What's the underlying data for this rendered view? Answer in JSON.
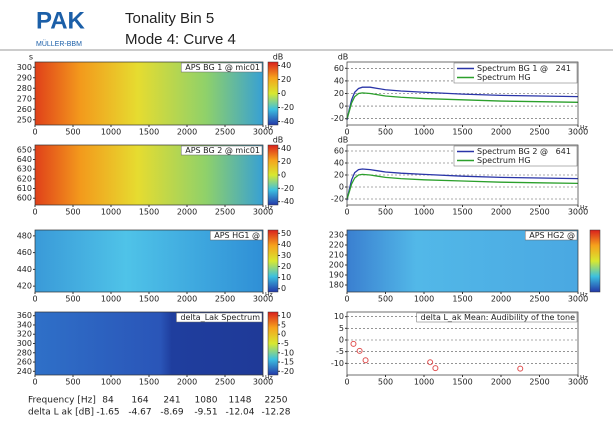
{
  "header": {
    "logo": "PAK",
    "company": "MÜLLER-BBM",
    "title": "Tonality Bin 5",
    "subtitle": "Mode 4: Curve 4"
  },
  "chart_data": [
    {
      "type": "heatmap",
      "title": "APS BG 1 @ mic01",
      "ylabel": "s",
      "x_unit": "Hz",
      "xlim": [
        0,
        3000
      ],
      "xticks": [
        0,
        500,
        1000,
        1500,
        2000,
        2500,
        3000
      ],
      "ylim": [
        245,
        305
      ],
      "yticks": [
        250,
        260,
        270,
        280,
        290,
        300
      ],
      "colorbar": {
        "label": "dB",
        "lim": [
          -45,
          45
        ],
        "ticks": [
          40,
          20,
          0,
          -20,
          -40
        ]
      }
    },
    {
      "type": "heatmap",
      "title": "APS BG 2 @ mic01",
      "x_unit": "Hz",
      "xlim": [
        0,
        3000
      ],
      "xticks": [
        0,
        500,
        1000,
        1500,
        2000,
        2500,
        3000
      ],
      "ylim": [
        593,
        655
      ],
      "yticks": [
        600,
        610,
        620,
        630,
        640,
        650
      ],
      "colorbar": {
        "label": "dB",
        "lim": [
          -45,
          45
        ],
        "ticks": [
          40,
          20,
          0,
          -20,
          -40
        ]
      }
    },
    {
      "type": "heatmap",
      "title": "APS HG1 @",
      "x_unit": "Hz",
      "xlim": [
        0,
        3000
      ],
      "xticks": [
        0,
        500,
        1000,
        1500,
        2000,
        2500,
        3000
      ],
      "ylim": [
        413,
        487
      ],
      "yticks": [
        420,
        440,
        460,
        480
      ],
      "colorbar": {
        "lim": [
          -3,
          53
        ],
        "ticks": [
          50,
          40,
          30,
          20,
          10,
          0
        ]
      }
    },
    {
      "type": "heatmap",
      "title": "delta_Lak Spectrum",
      "x_unit": "Hz",
      "xlim": [
        0,
        3000
      ],
      "xticks": [
        0,
        500,
        1000,
        1500,
        2000,
        2500,
        3000
      ],
      "ylim": [
        232,
        368
      ],
      "yticks": [
        240,
        260,
        280,
        300,
        320,
        340,
        360
      ],
      "colorbar": {
        "lim": [
          -22,
          12
        ],
        "ticks": [
          10,
          5,
          0,
          -5,
          -10,
          -15,
          -20
        ]
      }
    },
    {
      "type": "line",
      "ylabel": "dB",
      "x_unit": "Hz",
      "xlim": [
        0,
        3000
      ],
      "xticks": [
        0,
        500,
        1000,
        1500,
        2000,
        2500,
        3000
      ],
      "ylim": [
        -30,
        70
      ],
      "yticks": [
        -20,
        0,
        20,
        40,
        60
      ],
      "grid": true,
      "x": [
        0,
        30,
        60,
        100,
        150,
        200,
        300,
        400,
        500,
        700,
        1000,
        1500,
        2000,
        2500,
        3000
      ],
      "series": [
        {
          "name": "Spectrum BG 1 @   241",
          "color": "#2a35a8",
          "values": [
            -22,
            -5,
            10,
            22,
            28,
            30,
            30,
            28,
            26,
            24,
            22,
            19,
            17,
            16,
            15
          ]
        },
        {
          "name": "Spectrum HG",
          "color": "#2ca02c",
          "values": [
            -20,
            -8,
            5,
            15,
            20,
            21,
            20,
            18,
            16,
            14,
            12,
            10,
            8,
            7,
            6
          ]
        }
      ]
    },
    {
      "type": "line",
      "ylabel": "dB",
      "x_unit": "Hz",
      "xlim": [
        0,
        3000
      ],
      "xticks": [
        0,
        500,
        1000,
        1500,
        2000,
        2500,
        3000
      ],
      "ylim": [
        -30,
        70
      ],
      "yticks": [
        -20,
        0,
        20,
        40,
        60
      ],
      "grid": true,
      "x": [
        0,
        30,
        60,
        100,
        150,
        200,
        300,
        400,
        500,
        700,
        1000,
        1500,
        2000,
        2500,
        3000
      ],
      "series": [
        {
          "name": "Spectrum BG 2 @   641",
          "color": "#2a35a8",
          "values": [
            -22,
            -4,
            12,
            24,
            29,
            30,
            29,
            27,
            25,
            23,
            21,
            18,
            16,
            15,
            14
          ]
        },
        {
          "name": "Spectrum HG",
          "color": "#2ca02c",
          "values": [
            -20,
            -8,
            5,
            15,
            20,
            21,
            20,
            18,
            16,
            14,
            12,
            10,
            8,
            7,
            6
          ]
        }
      ]
    },
    {
      "type": "heatmap",
      "title": "APS HG2 @",
      "x_unit": "Hz",
      "xlim": [
        0,
        3000
      ],
      "xticks": [
        0,
        500,
        1000,
        1500,
        2000,
        2500,
        3000
      ],
      "ylim": [
        173,
        235
      ],
      "yticks": [
        180,
        190,
        200,
        210,
        220,
        230
      ],
      "colorbar": true
    },
    {
      "type": "scatter",
      "title": "delta L_ak Mean: Audibility of the tone",
      "x_unit": "Hz",
      "xlim": [
        0,
        3000
      ],
      "xticks": [
        0,
        500,
        1000,
        1500,
        2000,
        2500,
        3000
      ],
      "ylim": [
        -15,
        12
      ],
      "yticks": [
        10,
        5,
        0,
        -5,
        -10
      ],
      "grid": true,
      "color": "#e05050",
      "x": [
        84,
        164,
        241,
        1080,
        1148,
        2250
      ],
      "values": [
        -1.65,
        -4.67,
        -8.69,
        -9.51,
        -12.04,
        -12.28
      ]
    }
  ],
  "table": {
    "rows": [
      [
        "Frequency [Hz]",
        84,
        164,
        241,
        1080,
        1148,
        2250
      ],
      [
        "delta L ak [dB]",
        -1.65,
        -4.67,
        -8.69,
        -9.51,
        -12.04,
        -12.28
      ]
    ]
  }
}
